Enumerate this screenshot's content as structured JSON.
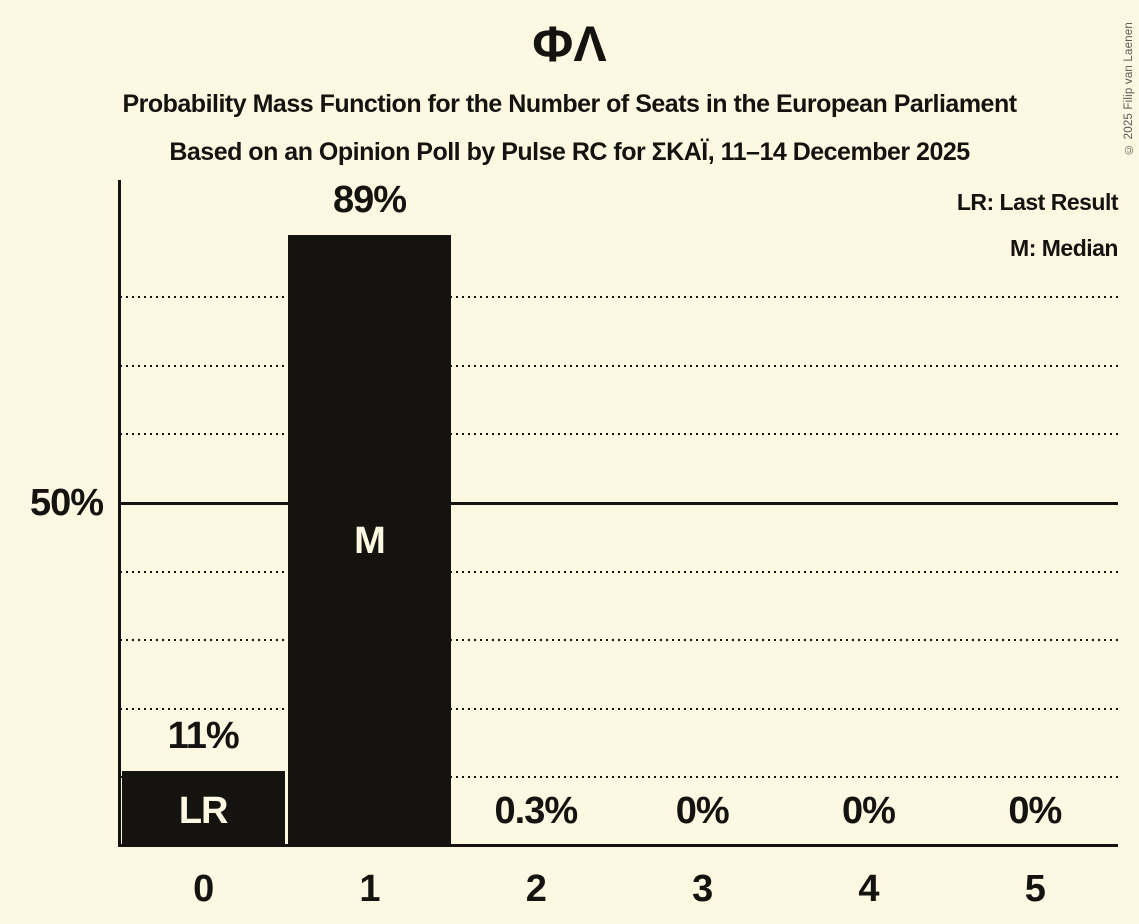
{
  "title": "ΦΛ",
  "subtitle1": "Probability Mass Function for the Number of Seats in the European Parliament",
  "subtitle2": "Based on an Opinion Poll by Pulse RC for ΣΚΑΪ, 11–14 December 2025",
  "legend": {
    "lr": "LR: Last Result",
    "m": "M: Median"
  },
  "y_axis": {
    "label_50": "50%"
  },
  "copyright": "© 2025 Filip van Laenen",
  "colors": {
    "background": "#FDF8E2",
    "bar": "#14130F",
    "ink": "#14130F",
    "copyright": "#5B5B54"
  },
  "chart_data": {
    "type": "bar",
    "title": "ΦΛ",
    "subtitle1": "Probability Mass Function for the Number of Seats in the European Parliament",
    "subtitle2": "Based on an Opinion Poll by Pulse RC for ΣΚΑΪ, 11–14 December 2025",
    "categories": [
      "0",
      "1",
      "2",
      "3",
      "4",
      "5"
    ],
    "values": [
      11,
      89,
      0.3,
      0,
      0,
      0
    ],
    "value_labels": [
      "11%",
      "89%",
      "0.3%",
      "0%",
      "0%",
      "0%"
    ],
    "annotations": [
      {
        "category": "0",
        "text": "LR",
        "placement": "bottom"
      },
      {
        "category": "1",
        "text": "M",
        "placement": "middle"
      }
    ],
    "xlabel": "",
    "ylabel": "",
    "ylim": [
      0,
      100
    ],
    "y_tick_labels": [
      "50%"
    ],
    "gridlines": {
      "dotted_pct": [
        10,
        20,
        30,
        40,
        60,
        70,
        80
      ],
      "solid_pct": [
        50
      ]
    },
    "grid": "dotted-horizontal",
    "legend": [
      "LR: Last Result",
      "M: Median"
    ],
    "legend_position": "top-right"
  }
}
